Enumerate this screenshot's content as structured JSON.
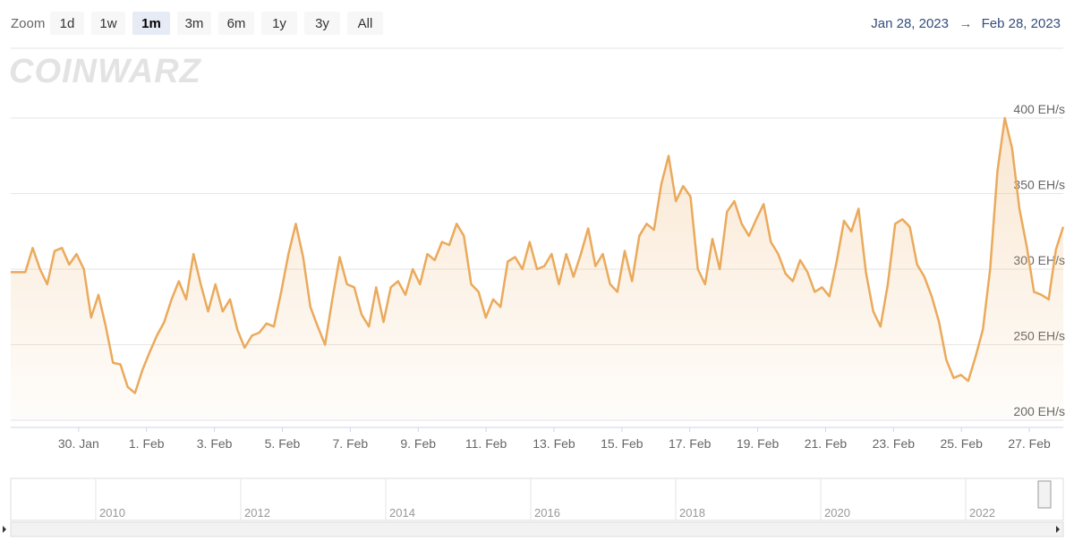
{
  "zoom": {
    "label": "Zoom",
    "buttons": [
      "1d",
      "1w",
      "1m",
      "3m",
      "6m",
      "1y",
      "3y",
      "All"
    ],
    "selected": 2
  },
  "range": {
    "from": "Jan 28, 2023",
    "separator": "→",
    "to": "Feb 28, 2023"
  },
  "watermark": "COINWARZ",
  "chart_data": {
    "type": "line",
    "color": "#eaaa5c",
    "grid": true,
    "xlim": [
      "2023-01-28",
      "2023-02-28"
    ],
    "xticks": [
      {
        "value": "2023-01-30",
        "label": "30. Jan"
      },
      {
        "value": "2023-02-01",
        "label": "1. Feb"
      },
      {
        "value": "2023-02-03",
        "label": "3. Feb"
      },
      {
        "value": "2023-02-05",
        "label": "5. Feb"
      },
      {
        "value": "2023-02-07",
        "label": "7. Feb"
      },
      {
        "value": "2023-02-09",
        "label": "9. Feb"
      },
      {
        "value": "2023-02-11",
        "label": "11. Feb"
      },
      {
        "value": "2023-02-13",
        "label": "13. Feb"
      },
      {
        "value": "2023-02-15",
        "label": "15. Feb"
      },
      {
        "value": "2023-02-17",
        "label": "17. Feb"
      },
      {
        "value": "2023-02-19",
        "label": "19. Feb"
      },
      {
        "value": "2023-02-21",
        "label": "21. Feb"
      },
      {
        "value": "2023-02-23",
        "label": "23. Feb"
      },
      {
        "value": "2023-02-25",
        "label": "25. Feb"
      },
      {
        "value": "2023-02-27",
        "label": "27. Feb"
      }
    ],
    "ylim": [
      200,
      400
    ],
    "yticks": [
      {
        "value": 200,
        "label": "200 EH/s"
      },
      {
        "value": 250,
        "label": "250 EH/s"
      },
      {
        "value": 300,
        "label": "300 EH/s"
      },
      {
        "value": 350,
        "label": "350 EH/s"
      },
      {
        "value": 400,
        "label": "400 EH/s"
      }
    ],
    "values": [
      298,
      298,
      298,
      314,
      300,
      290,
      312,
      314,
      303,
      310,
      300,
      268,
      283,
      262,
      238,
      237,
      222,
      218,
      233,
      245,
      256,
      265,
      280,
      292,
      280,
      310,
      290,
      272,
      290,
      272,
      280,
      260,
      248,
      256,
      258,
      264,
      262,
      285,
      310,
      330,
      308,
      275,
      262,
      250,
      280,
      308,
      290,
      288,
      270,
      262,
      288,
      265,
      288,
      292,
      283,
      300,
      290,
      310,
      306,
      318,
      316,
      330,
      322,
      290,
      285,
      268,
      280,
      275,
      305,
      308,
      300,
      318,
      300,
      302,
      310,
      290,
      310,
      295,
      310,
      327,
      302,
      310,
      290,
      285,
      312,
      292,
      322,
      330,
      326,
      356,
      375,
      345,
      355,
      348,
      300,
      290,
      320,
      300,
      338,
      345,
      330,
      322,
      333,
      343,
      318,
      310,
      297,
      292,
      306,
      298,
      285,
      288,
      282,
      305,
      332,
      325,
      340,
      298,
      272,
      262,
      290,
      330,
      333,
      328,
      303,
      295,
      282,
      265,
      240,
      228,
      230,
      226,
      242,
      260,
      300,
      365,
      400,
      380,
      340,
      315,
      285,
      283,
      280,
      313,
      328
    ]
  },
  "navigator": {
    "labels": [
      "2010",
      "2012",
      "2014",
      "2016",
      "2018",
      "2020",
      "2022"
    ]
  }
}
